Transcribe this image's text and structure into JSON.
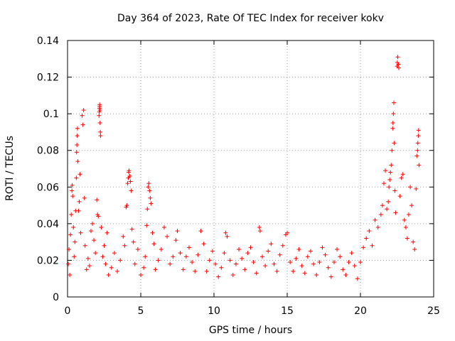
{
  "chart_data": {
    "type": "scatter",
    "title": "Day 364 of 2023, Rate Of TEC Index for receiver kokv",
    "xlabel": "GPS time / hours",
    "ylabel": "ROTI / TECUs",
    "xlim": [
      0,
      25
    ],
    "ylim": [
      0,
      0.14
    ],
    "xticks": [
      0,
      5,
      10,
      15,
      20,
      25
    ],
    "yticks": [
      0,
      0.02,
      0.04,
      0.06,
      0.08,
      0.1,
      0.12,
      0.14
    ],
    "grid": true,
    "marker": "+",
    "color": "#ff0000",
    "series": [
      {
        "name": "ROTI",
        "points": [
          [
            0.05,
            0.018
          ],
          [
            0.1,
            0.026
          ],
          [
            0.15,
            0.012
          ],
          [
            0.2,
            0.034
          ],
          [
            0.25,
            0.045
          ],
          [
            0.3,
            0.058
          ],
          [
            0.32,
            0.061
          ],
          [
            0.35,
            0.055
          ],
          [
            0.4,
            0.038
          ],
          [
            0.45,
            0.022
          ],
          [
            0.5,
            0.03
          ],
          [
            0.55,
            0.047
          ],
          [
            0.6,
            0.065
          ],
          [
            0.62,
            0.079
          ],
          [
            0.64,
            0.083
          ],
          [
            0.66,
            0.088
          ],
          [
            0.68,
            0.092
          ],
          [
            0.7,
            0.074
          ],
          [
            0.75,
            0.047
          ],
          [
            0.8,
            0.052
          ],
          [
            0.85,
            0.067
          ],
          [
            0.9,
            0.035
          ],
          [
            1.0,
            0.099
          ],
          [
            1.05,
            0.094
          ],
          [
            1.1,
            0.102
          ],
          [
            1.15,
            0.054
          ],
          [
            1.2,
            0.028
          ],
          [
            1.3,
            0.015
          ],
          [
            1.4,
            0.021
          ],
          [
            1.5,
            0.017
          ],
          [
            1.6,
            0.036
          ],
          [
            1.7,
            0.04
          ],
          [
            1.8,
            0.031
          ],
          [
            1.9,
            0.024
          ],
          [
            2.0,
            0.053
          ],
          [
            2.05,
            0.045
          ],
          [
            2.1,
            0.044
          ],
          [
            2.15,
            0.099
          ],
          [
            2.17,
            0.101
          ],
          [
            2.18,
            0.103
          ],
          [
            2.19,
            0.105
          ],
          [
            2.2,
            0.104
          ],
          [
            2.21,
            0.102
          ],
          [
            2.22,
            0.095
          ],
          [
            2.24,
            0.09
          ],
          [
            2.26,
            0.088
          ],
          [
            2.3,
            0.038
          ],
          [
            2.4,
            0.022
          ],
          [
            2.5,
            0.028
          ],
          [
            2.6,
            0.018
          ],
          [
            2.7,
            0.035
          ],
          [
            2.8,
            0.012
          ],
          [
            3.0,
            0.016
          ],
          [
            3.2,
            0.024
          ],
          [
            3.4,
            0.014
          ],
          [
            3.6,
            0.02
          ],
          [
            3.8,
            0.033
          ],
          [
            3.9,
            0.028
          ],
          [
            4.0,
            0.049
          ],
          [
            4.05,
            0.05
          ],
          [
            4.1,
            0.062
          ],
          [
            4.15,
            0.065
          ],
          [
            4.18,
            0.068
          ],
          [
            4.2,
            0.069
          ],
          [
            4.25,
            0.066
          ],
          [
            4.3,
            0.063
          ],
          [
            4.35,
            0.058
          ],
          [
            4.4,
            0.037
          ],
          [
            4.5,
            0.03
          ],
          [
            4.6,
            0.018
          ],
          [
            4.8,
            0.026
          ],
          [
            5.0,
            0.012
          ],
          [
            5.2,
            0.016
          ],
          [
            5.3,
            0.022
          ],
          [
            5.4,
            0.039
          ],
          [
            5.45,
            0.048
          ],
          [
            5.5,
            0.06
          ],
          [
            5.55,
            0.062
          ],
          [
            5.6,
            0.058
          ],
          [
            5.65,
            0.054
          ],
          [
            5.7,
            0.051
          ],
          [
            5.8,
            0.035
          ],
          [
            5.9,
            0.029
          ],
          [
            6.0,
            0.015
          ],
          [
            6.2,
            0.02
          ],
          [
            6.4,
            0.026
          ],
          [
            6.6,
            0.038
          ],
          [
            6.8,
            0.033
          ],
          [
            7.0,
            0.018
          ],
          [
            7.2,
            0.022
          ],
          [
            7.4,
            0.031
          ],
          [
            7.5,
            0.036
          ],
          [
            7.7,
            0.024
          ],
          [
            7.9,
            0.015
          ],
          [
            8.1,
            0.022
          ],
          [
            8.3,
            0.027
          ],
          [
            8.5,
            0.019
          ],
          [
            8.7,
            0.014
          ],
          [
            8.9,
            0.023
          ],
          [
            9.1,
            0.036
          ],
          [
            9.3,
            0.029
          ],
          [
            9.5,
            0.014
          ],
          [
            9.7,
            0.02
          ],
          [
            9.9,
            0.025
          ],
          [
            10.1,
            0.018
          ],
          [
            10.3,
            0.011
          ],
          [
            10.5,
            0.016
          ],
          [
            10.7,
            0.024
          ],
          [
            10.8,
            0.035
          ],
          [
            10.9,
            0.033
          ],
          [
            11.1,
            0.02
          ],
          [
            11.3,
            0.012
          ],
          [
            11.5,
            0.018
          ],
          [
            11.7,
            0.026
          ],
          [
            11.9,
            0.021
          ],
          [
            12.1,
            0.015
          ],
          [
            12.3,
            0.024
          ],
          [
            12.5,
            0.027
          ],
          [
            12.7,
            0.019
          ],
          [
            12.9,
            0.013
          ],
          [
            13.1,
            0.038
          ],
          [
            13.15,
            0.036
          ],
          [
            13.3,
            0.022
          ],
          [
            13.5,
            0.017
          ],
          [
            13.7,
            0.025
          ],
          [
            13.9,
            0.029
          ],
          [
            14.1,
            0.018
          ],
          [
            14.3,
            0.014
          ],
          [
            14.5,
            0.023
          ],
          [
            14.7,
            0.028
          ],
          [
            14.9,
            0.034
          ],
          [
            15.0,
            0.035
          ],
          [
            15.2,
            0.019
          ],
          [
            15.4,
            0.014
          ],
          [
            15.6,
            0.021
          ],
          [
            15.8,
            0.026
          ],
          [
            16.0,
            0.017
          ],
          [
            16.2,
            0.013
          ],
          [
            16.4,
            0.022
          ],
          [
            16.6,
            0.025
          ],
          [
            16.8,
            0.018
          ],
          [
            17.0,
            0.012
          ],
          [
            17.2,
            0.019
          ],
          [
            17.4,
            0.027
          ],
          [
            17.6,
            0.023
          ],
          [
            17.8,
            0.016
          ],
          [
            18.0,
            0.011
          ],
          [
            18.2,
            0.019
          ],
          [
            18.4,
            0.026
          ],
          [
            18.6,
            0.022
          ],
          [
            18.8,
            0.015
          ],
          [
            19.0,
            0.012
          ],
          [
            19.2,
            0.019
          ],
          [
            19.4,
            0.024
          ],
          [
            19.6,
            0.017
          ],
          [
            19.8,
            0.01
          ],
          [
            20.0,
            0.019
          ],
          [
            20.2,
            0.027
          ],
          [
            20.4,
            0.032
          ],
          [
            20.6,
            0.036
          ],
          [
            20.8,
            0.028
          ],
          [
            21.0,
            0.042
          ],
          [
            21.2,
            0.038
          ],
          [
            21.4,
            0.045
          ],
          [
            21.5,
            0.05
          ],
          [
            21.6,
            0.062
          ],
          [
            21.7,
            0.069
          ],
          [
            21.8,
            0.048
          ],
          [
            21.9,
            0.052
          ],
          [
            21.95,
            0.06
          ],
          [
            22.0,
            0.064
          ],
          [
            22.05,
            0.068
          ],
          [
            22.1,
            0.072
          ],
          [
            22.15,
            0.08
          ],
          [
            22.2,
            0.092
          ],
          [
            22.22,
            0.095
          ],
          [
            22.25,
            0.1
          ],
          [
            22.28,
            0.106
          ],
          [
            22.3,
            0.084
          ],
          [
            22.35,
            0.058
          ],
          [
            22.4,
            0.046
          ],
          [
            22.5,
            0.126
          ],
          [
            22.52,
            0.128
          ],
          [
            22.55,
            0.131
          ],
          [
            22.6,
            0.127
          ],
          [
            22.62,
            0.125
          ],
          [
            22.7,
            0.055
          ],
          [
            22.8,
            0.065
          ],
          [
            22.9,
            0.067
          ],
          [
            23.0,
            0.042
          ],
          [
            23.1,
            0.038
          ],
          [
            23.2,
            0.032
          ],
          [
            23.3,
            0.045
          ],
          [
            23.4,
            0.06
          ],
          [
            23.5,
            0.05
          ],
          [
            23.6,
            0.03
          ],
          [
            23.7,
            0.026
          ],
          [
            23.8,
            0.059
          ],
          [
            23.85,
            0.077
          ],
          [
            23.9,
            0.08
          ],
          [
            23.92,
            0.084
          ],
          [
            23.95,
            0.088
          ],
          [
            23.97,
            0.091
          ],
          [
            24.0,
            0.072
          ]
        ]
      }
    ]
  }
}
